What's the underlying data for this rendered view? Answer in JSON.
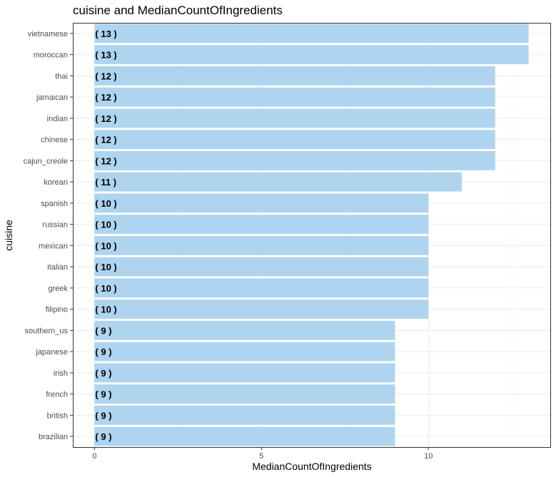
{
  "chart_data": {
    "type": "bar",
    "orientation": "horizontal",
    "title": "cuisine and MedianCountOfIngredients",
    "xlabel": "MedianCountOfIngredients",
    "ylabel": "cuisine",
    "categories": [
      "vietnamese",
      "moroccan",
      "thai",
      "jamaican",
      "indian",
      "chinese",
      "cajun_creole",
      "korean",
      "spanish",
      "russian",
      "mexican",
      "italian",
      "greek",
      "filipino",
      "southern_us",
      "japanese",
      "irish",
      "french",
      "british",
      "brazilian"
    ],
    "values": [
      13,
      13,
      12,
      12,
      12,
      12,
      12,
      11,
      10,
      10,
      10,
      10,
      10,
      10,
      9,
      9,
      9,
      9,
      9,
      9
    ],
    "data_labels": [
      "( 13 )",
      "( 13 )",
      "( 12 )",
      "( 12 )",
      "( 12 )",
      "( 12 )",
      "( 12 )",
      "( 11 )",
      "( 10 )",
      "( 10 )",
      "( 10 )",
      "( 10 )",
      "( 10 )",
      "( 10 )",
      "( 9 )",
      "( 9 )",
      "( 9 )",
      "( 9 )",
      "( 9 )",
      "( 9 )"
    ],
    "x_ticks": [
      0,
      5,
      10
    ],
    "xlim": [
      -0.65,
      13.65
    ],
    "grid": true,
    "colors": {
      "bar": "#aed4f0",
      "grid": "#ebebeb",
      "panel_border": "#333333"
    }
  }
}
